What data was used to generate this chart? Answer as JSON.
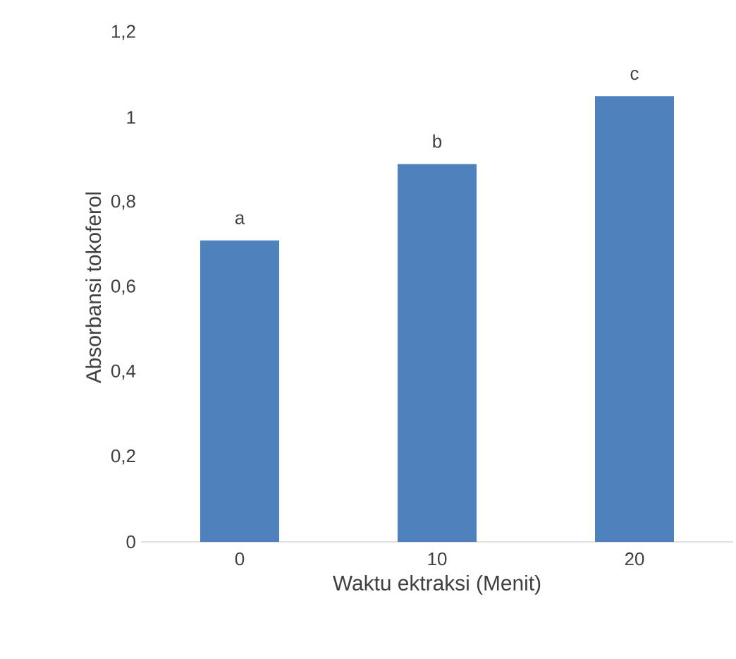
{
  "chart_data": {
    "type": "bar",
    "xlabel": "Waktu ektraksi (Menit)",
    "ylabel": "Absorbansi tokoferol",
    "categories": [
      "0",
      "10",
      "20"
    ],
    "values": [
      0.71,
      0.89,
      1.05
    ],
    "value_labels": [
      "a",
      "b",
      "c"
    ],
    "color": "#4f81bd",
    "ylim": [
      0,
      1.2
    ],
    "yticks": [
      0,
      {
        "value": 0.2,
        "label": "0,2"
      },
      {
        "value": 0.4,
        "label": "0,4"
      },
      {
        "value": 0.6,
        "label": "0,6"
      },
      {
        "value": 0.8,
        "label": "0,8"
      },
      1,
      {
        "value": 1.2,
        "label": "1,2"
      }
    ],
    "grid": false
  }
}
